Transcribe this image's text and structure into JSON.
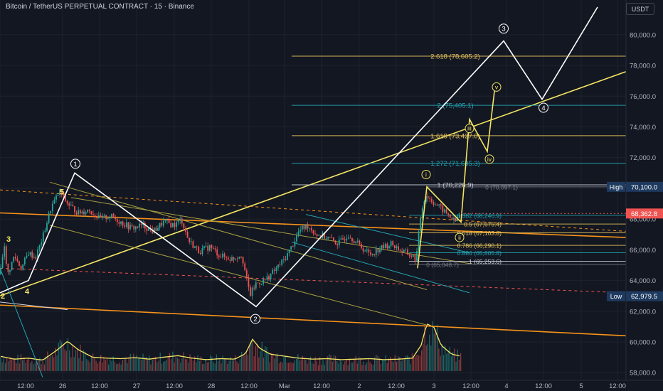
{
  "header": {
    "title": "Bitcoin / TetherUS PERPETUAL CONTRACT · 15 · Binance",
    "currency": "USDT"
  },
  "colors": {
    "background": "#131722",
    "candle_up": "#26a69a",
    "candle_down": "#ef5350",
    "wave_white": "#ffffff",
    "wave_yellow": "#f5e663",
    "fib_gold": "#e6c45c",
    "fib_teal": "#22a6b3",
    "trend_orange": "#f7931a",
    "channel_olive": "#a8a040",
    "current_price_bg": "#ef5350",
    "high_low_bg": "#1e3a5f"
  },
  "chart_data": {
    "type": "candlestick",
    "symbol": "BTCUSDT.P",
    "interval": "15",
    "ylim": [
      57500,
      81800
    ],
    "y_ticks": [
      "80,000.0",
      "78,000.0",
      "76,000.0",
      "74,000.0",
      "72,000.0",
      "70,000.0",
      "68,000.0",
      "66,000.0",
      "64,000.0",
      "62,000.0",
      "60,000.0",
      "58,000.0"
    ],
    "y_tick_values": [
      80000,
      78000,
      76000,
      74000,
      72000,
      70000,
      68000,
      66000,
      64000,
      62000,
      60000,
      58000
    ],
    "x_ticks": [
      "12:00",
      "26",
      "12:00",
      "27",
      "12:00",
      "28",
      "12:00",
      "Mar",
      "12:00",
      "2",
      "12:00",
      "3",
      "12:00",
      "4",
      "12:00",
      "5",
      "12:00"
    ],
    "price_path": [
      [
        0,
        64400
      ],
      [
        6,
        66500
      ],
      [
        10,
        64300
      ],
      [
        20,
        65600
      ],
      [
        30,
        64800
      ],
      [
        40,
        65800
      ],
      [
        50,
        65500
      ],
      [
        60,
        66800
      ],
      [
        72,
        68800
      ],
      [
        84,
        69800
      ],
      [
        95,
        69000
      ],
      [
        110,
        68400
      ],
      [
        125,
        68600
      ],
      [
        140,
        68000
      ],
      [
        155,
        68200
      ],
      [
        170,
        67800
      ],
      [
        185,
        67400
      ],
      [
        200,
        67600
      ],
      [
        215,
        67200
      ],
      [
        230,
        67800
      ],
      [
        245,
        67600
      ],
      [
        255,
        68000
      ],
      [
        265,
        66600
      ],
      [
        280,
        65900
      ],
      [
        295,
        66200
      ],
      [
        310,
        65600
      ],
      [
        325,
        65400
      ],
      [
        340,
        65700
      ],
      [
        348,
        63700
      ],
      [
        352,
        63100
      ],
      [
        360,
        63800
      ],
      [
        372,
        64000
      ],
      [
        385,
        64600
      ],
      [
        400,
        65400
      ],
      [
        410,
        66200
      ],
      [
        420,
        67200
      ],
      [
        432,
        67600
      ],
      [
        445,
        67000
      ],
      [
        460,
        66800
      ],
      [
        475,
        66400
      ],
      [
        490,
        67000
      ],
      [
        505,
        66300
      ],
      [
        520,
        65700
      ],
      [
        535,
        66100
      ],
      [
        550,
        66400
      ],
      [
        565,
        65900
      ],
      [
        575,
        65700
      ],
      [
        585,
        65400
      ],
      [
        592,
        68500
      ],
      [
        598,
        69600
      ],
      [
        604,
        69300
      ],
      [
        612,
        69000
      ],
      [
        622,
        68600
      ],
      [
        632,
        68200
      ],
      [
        640,
        67800
      ],
      [
        648,
        68360
      ]
    ],
    "volume_path": [
      [
        0,
        300
      ],
      [
        20,
        240
      ],
      [
        40,
        260
      ],
      [
        60,
        220
      ],
      [
        80,
        420
      ],
      [
        95,
        600
      ],
      [
        110,
        430
      ],
      [
        130,
        280
      ],
      [
        150,
        260
      ],
      [
        170,
        250
      ],
      [
        190,
        270
      ],
      [
        210,
        240
      ],
      [
        230,
        280
      ],
      [
        250,
        310
      ],
      [
        270,
        260
      ],
      [
        290,
        230
      ],
      [
        310,
        250
      ],
      [
        330,
        240
      ],
      [
        345,
        350
      ],
      [
        355,
        640
      ],
      [
        365,
        460
      ],
      [
        380,
        340
      ],
      [
        400,
        300
      ],
      [
        420,
        260
      ],
      [
        440,
        240
      ],
      [
        460,
        250
      ],
      [
        480,
        230
      ],
      [
        500,
        240
      ],
      [
        520,
        250
      ],
      [
        540,
        230
      ],
      [
        560,
        240
      ],
      [
        580,
        260
      ],
      [
        592,
        520
      ],
      [
        600,
        950
      ],
      [
        610,
        880
      ],
      [
        620,
        520
      ],
      [
        635,
        340
      ],
      [
        648,
        300
      ]
    ],
    "volume_max": 1000,
    "current_price": {
      "value": 68362.8,
      "label": "68,362.8"
    },
    "high": {
      "value": 70100.0,
      "label": "High",
      "price_label": "70,100.0"
    },
    "low": {
      "value": 62979.5,
      "label": "Low",
      "price_label": "62,979.5"
    },
    "wave_white": [
      [
        0,
        63200
      ],
      [
        40,
        64000
      ],
      [
        105,
        71000
      ],
      [
        360,
        62300
      ],
      [
        708,
        79600
      ],
      [
        762,
        75800
      ],
      [
        840,
        81800
      ]
    ],
    "wave_labels_white": [
      {
        "text": "1",
        "x": 106,
        "y": 71600,
        "circled": true
      },
      {
        "text": "2",
        "x": 359,
        "y": 61500,
        "circled": true
      },
      {
        "text": "3",
        "x": 708,
        "y": 80400,
        "circled": true
      },
      {
        "text": "4",
        "x": 764,
        "y": 75250,
        "circled": true
      }
    ],
    "wave_labels_yellow": [
      {
        "text": "3",
        "x": 12,
        "y": 66700
      },
      {
        "text": "2",
        "x": 4,
        "y": 63000
      },
      {
        "text": "4",
        "x": 38,
        "y": 63300
      },
      {
        "text": "5",
        "x": 87,
        "y": 69800
      }
    ],
    "wave_yellow_path": [
      [
        587,
        64800
      ],
      [
        600,
        70100
      ],
      [
        648,
        67800
      ],
      [
        660,
        74500
      ],
      [
        685,
        72400
      ],
      [
        696,
        76700
      ]
    ],
    "wave_yellow_labels": [
      {
        "text": "i",
        "x": 599,
        "y": 70900
      },
      {
        "text": "ii",
        "x": 646,
        "y": 66800
      },
      {
        "text": "iii",
        "x": 660,
        "y": 73900
      },
      {
        "text": "iv",
        "x": 688,
        "y": 71900
      },
      {
        "text": "v",
        "x": 698,
        "y": 76600
      }
    ],
    "fib_upper": [
      {
        "label": "2.618 (78,605.2)",
        "value": 78605.2,
        "color": "#e6c45c"
      },
      {
        "label": "2 (75,405.1)",
        "value": 75405.1,
        "color": "#22a6b3"
      },
      {
        "label": "1.618 (73,427.0)",
        "value": 73427.0,
        "color": "#e6c45c"
      },
      {
        "label": "1.272 (71,635.3)",
        "value": 71635.3,
        "color": "#22a6b3"
      },
      {
        "label": "1 (70,226.9)",
        "value": 70226.9,
        "color": "#d1d4dc"
      }
    ],
    "fib_lower": [
      {
        "label": "0 (70,097.1)",
        "value": 70097.1,
        "color": "#787b86"
      },
      {
        "label": "0.382 (68,246.9)",
        "value": 68246.9,
        "color": "#22a6b3"
      },
      {
        "label": "0.5 (67,675.4)",
        "value": 67675.4,
        "color": "#e6c45c"
      },
      {
        "label": "0.618 (67,103.8)",
        "value": 67103.8,
        "color": "#e6c45c"
      },
      {
        "label": "0.786 (66,290.1)",
        "value": 66290.1,
        "color": "#e6c45c"
      },
      {
        "label": "0.886 (65,805.8)",
        "value": 65805.8,
        "color": "#22a6b3"
      },
      {
        "label": "1 (65,253.6)",
        "value": 65253.6,
        "color": "#d1d4dc"
      },
      {
        "label": "0 (65,048.7)",
        "value": 65048.7,
        "color": "#787b86"
      }
    ],
    "trendlines": [
      {
        "from": [
          0,
          63000
        ],
        "to": [
          880,
          77600
        ],
        "color": "#f5e663",
        "w": 1.6
      },
      {
        "from": [
          0,
          62400
        ],
        "to": [
          880,
          60400
        ],
        "color": "#f7931a",
        "w": 1.6
      },
      {
        "from": [
          0,
          68400
        ],
        "to": [
          880,
          66800
        ],
        "color": "#f7931a",
        "w": 1.6
      },
      {
        "from": [
          0,
          69900
        ],
        "to": [
          880,
          67200
        ],
        "color": "#f7931a",
        "w": 1,
        "dash": "4,4"
      },
      {
        "from": [
          0,
          64800
        ],
        "to": [
          880,
          63200
        ],
        "color": "#ef5350",
        "w": 1,
        "dash": "4,4"
      },
      {
        "from": [
          70,
          70400
        ],
        "to": [
          600,
          63400
        ],
        "color": "#a8a040",
        "w": 1
      },
      {
        "from": [
          70,
          67600
        ],
        "to": [
          600,
          61100
        ],
        "color": "#a8a040",
        "w": 1
      },
      {
        "from": [
          100,
          69400
        ],
        "to": [
          660,
          65100
        ],
        "color": "#a8a040",
        "w": 1
      },
      {
        "from": [
          430,
          68300
        ],
        "to": [
          660,
          65800
        ],
        "color": "#22a6b3",
        "w": 1
      },
      {
        "from": [
          410,
          66500
        ],
        "to": [
          660,
          63200
        ],
        "color": "#22a6b3",
        "w": 1
      },
      {
        "from": [
          0,
          62600
        ],
        "to": [
          95,
          62100
        ],
        "color": "#d1d4dc",
        "w": 1
      },
      {
        "from": [
          0,
          64800
        ],
        "to": [
          60,
          57700
        ],
        "color": "#22a6b3",
        "w": 1
      }
    ]
  }
}
